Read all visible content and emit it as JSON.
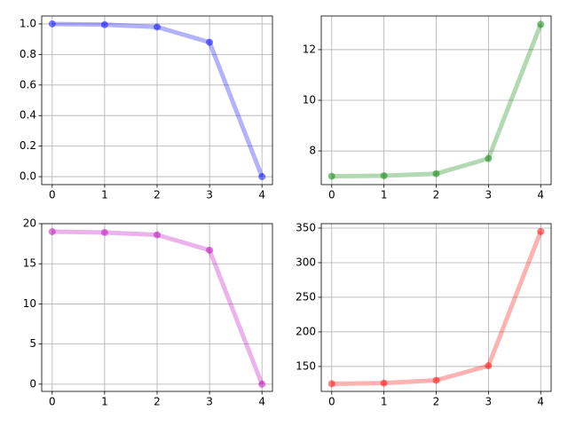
{
  "chart_data": [
    {
      "type": "line",
      "x": [
        0,
        1,
        2,
        3,
        4
      ],
      "values": [
        1.0,
        0.995,
        0.98,
        0.88,
        0.0
      ],
      "color": "blue",
      "xlim": [
        -0.2,
        4.2
      ],
      "xticks": [
        0,
        1,
        2,
        3,
        4
      ],
      "ylim": [
        -0.052,
        1.052
      ],
      "yticks": [
        {
          "value": 0,
          "label": "0.0"
        },
        0.2,
        0.4,
        0.6,
        0.8,
        {
          "value": 1,
          "label": "1.0"
        }
      ],
      "grid": true
    },
    {
      "type": "line",
      "x": [
        0,
        1,
        2,
        3,
        4
      ],
      "values": [
        7.0,
        7.02,
        7.1,
        7.7,
        13.0
      ],
      "color": "green",
      "xlim": [
        -0.2,
        4.2
      ],
      "xticks": [
        0,
        1,
        2,
        3,
        4
      ],
      "ylim": [
        6.67,
        13.33
      ],
      "yticks": [
        8,
        10,
        12
      ],
      "grid": true
    },
    {
      "type": "line",
      "x": [
        0,
        1,
        2,
        3,
        4
      ],
      "values": [
        19.0,
        18.9,
        18.6,
        16.7,
        0.0
      ],
      "color": "m",
      "xlim": [
        -0.2,
        4.2
      ],
      "xticks": [
        0,
        1,
        2,
        3,
        4
      ],
      "ylim": [
        -0.9,
        20.0
      ],
      "yticks": [
        0,
        5,
        10,
        15,
        20
      ],
      "grid": true
    },
    {
      "type": "line",
      "x": [
        0,
        1,
        2,
        3,
        4
      ],
      "values": [
        125,
        126,
        130,
        151,
        345
      ],
      "color": "red",
      "xlim": [
        -0.2,
        4.2
      ],
      "xticks": [
        0,
        1,
        2,
        3,
        4
      ],
      "ylim": [
        114,
        356.4
      ],
      "yticks": [
        150,
        200,
        250,
        300,
        350
      ],
      "grid": true
    }
  ]
}
